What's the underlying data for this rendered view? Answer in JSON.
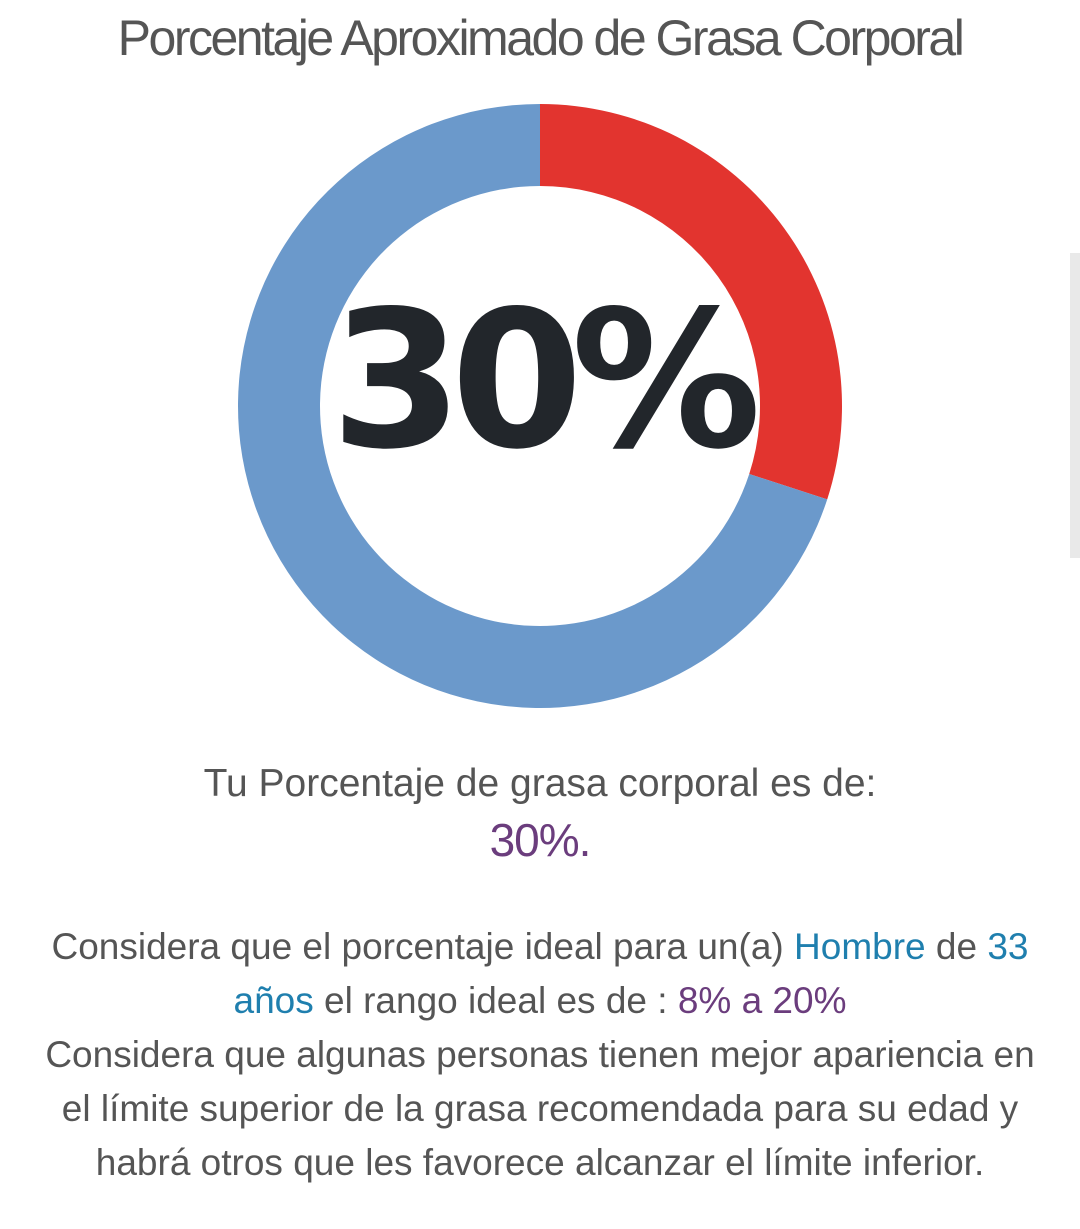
{
  "header": {
    "title": "Porcentaje Aproximado de Grasa Corporal"
  },
  "colors": {
    "fat": "#e2342f",
    "rest": "#6b99cb",
    "center_text": "#22262b",
    "accent_blue": "#1f7fae",
    "accent_purple": "#6b3d7d",
    "text_gray": "#555555"
  },
  "chart_data": {
    "type": "pie",
    "categories": [
      "",
      ""
    ],
    "values": [
      30,
      70
    ],
    "center_label": "30%"
  },
  "result": {
    "label": "Tu Porcentaje de grasa corporal es de:",
    "value": "30%."
  },
  "info": {
    "line1_prefix": "Considera que el porcentaje ideal para un(a) ",
    "gender": "Hombre",
    "line1_suffix": " de",
    "age": "33 años",
    "range_prefix": " el rango ideal es de : ",
    "range": "8% a 20%",
    "note": "Considera que algunas personas tienen mejor apariencia en el límite superior de la grasa recomendada para su edad y habrá otros que les favorece alcanzar el límite inferior."
  }
}
